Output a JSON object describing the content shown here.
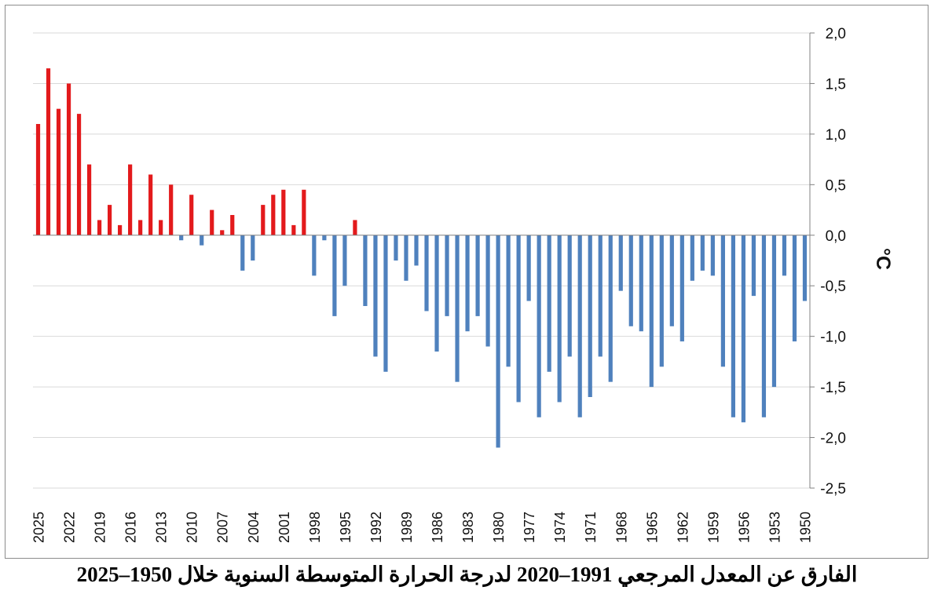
{
  "chart_data": {
    "type": "bar",
    "title": "الفارق عن المعدل المرجعي  1991–2020 لدرجة الحرارة المتوسطة السنوية خلال 1950–2025",
    "ylabel": "°C",
    "xlabel": "",
    "ylim": [
      -2.5,
      2.0
    ],
    "yticks": [
      2.0,
      1.5,
      1.0,
      0.5,
      0.0,
      -0.5,
      -1.0,
      -1.5,
      -2.0,
      -2.5
    ],
    "ytick_labels": [
      "2,0",
      "1,5",
      "1,0",
      "0,5",
      "0,0",
      "-0,5",
      "-1,0",
      "-1,5",
      "-2,0",
      "-2,5"
    ],
    "xtick_labels": [
      "2025",
      "2022",
      "2019",
      "2016",
      "2013",
      "2010",
      "2007",
      "2004",
      "2001",
      "1998",
      "1995",
      "1992",
      "1989",
      "1986",
      "1983",
      "1980",
      "1977",
      "1974",
      "1971",
      "1968",
      "1965",
      "1962",
      "1959",
      "1956",
      "1953",
      "1950"
    ],
    "grid": true,
    "axis_side": "right",
    "x_direction": "descending",
    "positive_color": "#e31a1c",
    "negative_color": "#4f81bd",
    "categories": [
      2025,
      2024,
      2023,
      2022,
      2021,
      2020,
      2019,
      2018,
      2017,
      2016,
      2015,
      2014,
      2013,
      2012,
      2011,
      2010,
      2009,
      2008,
      2007,
      2006,
      2005,
      2004,
      2003,
      2002,
      2001,
      2000,
      1999,
      1998,
      1997,
      1996,
      1995,
      1994,
      1993,
      1992,
      1991,
      1990,
      1989,
      1988,
      1987,
      1986,
      1985,
      1984,
      1983,
      1982,
      1981,
      1980,
      1979,
      1978,
      1977,
      1976,
      1975,
      1974,
      1973,
      1972,
      1971,
      1970,
      1969,
      1968,
      1967,
      1966,
      1965,
      1964,
      1963,
      1962,
      1961,
      1960,
      1959,
      1958,
      1957,
      1956,
      1955,
      1954,
      1953,
      1952,
      1951,
      1950
    ],
    "values": [
      1.1,
      1.65,
      1.25,
      1.5,
      1.2,
      0.7,
      0.15,
      0.3,
      0.1,
      0.7,
      0.15,
      0.6,
      0.15,
      0.5,
      -0.05,
      0.4,
      -0.1,
      0.25,
      0.05,
      0.2,
      -0.35,
      -0.25,
      0.3,
      0.4,
      0.45,
      0.1,
      0.45,
      -0.4,
      -0.05,
      -0.8,
      -0.5,
      0.15,
      -0.7,
      -1.2,
      -1.35,
      -0.25,
      -0.45,
      -0.3,
      -0.75,
      -1.15,
      -0.8,
      -1.45,
      -0.95,
      -0.8,
      -1.1,
      -2.1,
      -1.3,
      -1.65,
      -0.65,
      -1.8,
      -1.35,
      -1.65,
      -1.2,
      -1.8,
      -1.6,
      -1.2,
      -1.45,
      -0.55,
      -0.9,
      -0.95,
      -1.5,
      -1.3,
      -0.9,
      -1.05,
      -0.45,
      -0.35,
      -0.4,
      -1.3,
      -1.8,
      -1.85,
      -0.6,
      -1.8,
      -1.5,
      -0.4,
      -1.05,
      -0.65
    ]
  }
}
